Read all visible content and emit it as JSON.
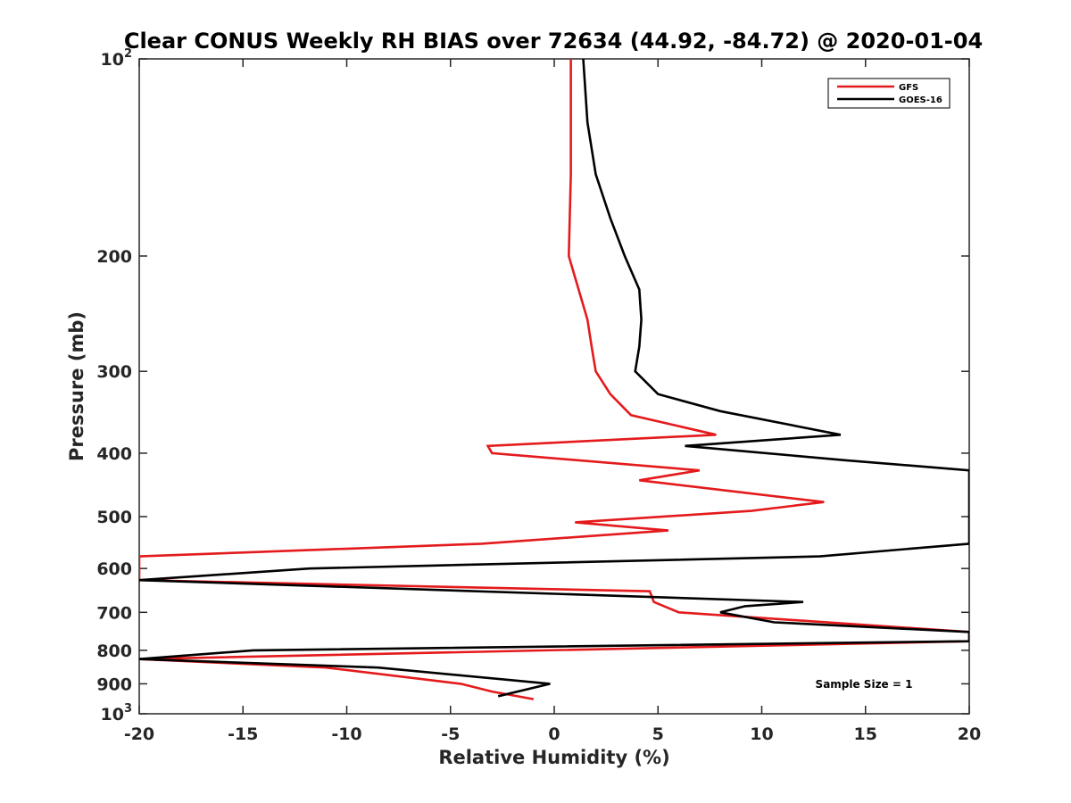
{
  "chart_data": {
    "type": "line",
    "title": "Clear CONUS Weekly RH BIAS over 72634 (44.92, -84.72) @ 2020-01-04",
    "xlabel": "Relative Humidity (%)",
    "ylabel": "Pressure (mb)",
    "xlim": [
      -20,
      20
    ],
    "ylim": [
      100,
      1000
    ],
    "yscale": "log",
    "yreversed": true,
    "grid": false,
    "legend_location": "top-right",
    "x_ticks": [
      -20,
      -15,
      -10,
      -5,
      0,
      5,
      10,
      15,
      20
    ],
    "x_tick_labels": [
      "-20",
      "-15",
      "-10",
      "-5",
      "0",
      "5",
      "10",
      "15",
      "20"
    ],
    "y_ticks": [
      100,
      200,
      300,
      400,
      500,
      600,
      700,
      800,
      900,
      1000
    ],
    "y_tick_labels": [
      {
        "base": "10",
        "exp": "2"
      },
      {
        "base": "200",
        "exp": ""
      },
      {
        "base": "300",
        "exp": ""
      },
      {
        "base": "400",
        "exp": ""
      },
      {
        "base": "500",
        "exp": ""
      },
      {
        "base": "600",
        "exp": ""
      },
      {
        "base": "700",
        "exp": ""
      },
      {
        "base": "800",
        "exp": ""
      },
      {
        "base": "900",
        "exp": ""
      },
      {
        "base": "10",
        "exp": "3"
      }
    ],
    "annotation": "Sample Size = 1",
    "series": [
      {
        "name": "GFS",
        "color": "#e41a1c",
        "pressure": [
          100,
          150,
          200,
          250,
          275,
          300,
          325,
          350,
          375,
          390,
          400,
          425,
          440,
          475,
          490,
          510,
          525,
          550,
          575,
          625,
          650,
          675,
          700,
          750,
          775,
          825,
          850,
          900,
          925,
          950
        ],
        "values": [
          0.8,
          0.8,
          0.7,
          1.6,
          1.8,
          2.0,
          2.7,
          3.7,
          7.8,
          -3.2,
          -3.0,
          7.0,
          4.1,
          13.0,
          9.5,
          1.0,
          5.5,
          -3.5,
          -20.0,
          -20.0,
          4.6,
          4.8,
          6.0,
          20.0,
          20.0,
          -20.0,
          -11.0,
          -4.5,
          -3.0,
          -1.0
        ]
      },
      {
        "name": "GOES-16",
        "color": "#000000",
        "pressure": [
          100,
          125,
          150,
          175,
          200,
          225,
          250,
          275,
          300,
          325,
          345,
          375,
          390,
          410,
          425,
          550,
          575,
          600,
          625,
          675,
          685,
          700,
          725,
          750,
          775,
          800,
          825,
          850,
          900,
          940
        ],
        "values": [
          1.4,
          1.6,
          2.0,
          2.7,
          3.4,
          4.1,
          4.2,
          4.1,
          3.9,
          5.0,
          8.0,
          13.8,
          6.3,
          14.0,
          20.0,
          20.0,
          12.8,
          -11.8,
          -20.0,
          12.0,
          9.2,
          8.0,
          10.6,
          20.0,
          20.0,
          -14.5,
          -20.0,
          -8.5,
          -0.2,
          -2.7
        ]
      }
    ]
  }
}
